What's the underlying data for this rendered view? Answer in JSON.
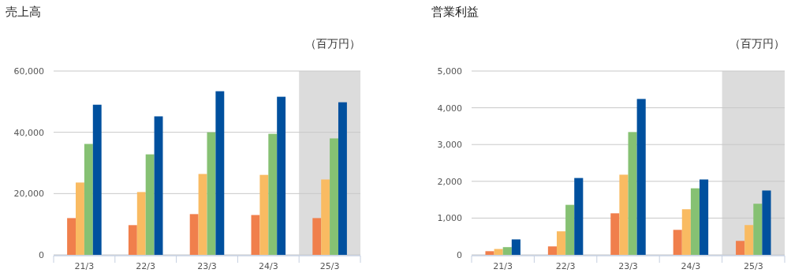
{
  "chart_data": [
    {
      "type": "bar",
      "title": "売上高",
      "annotations": [
        "（百万円）"
      ],
      "categories": [
        "21/3",
        "22/3",
        "23/3",
        "24/3",
        "25/3"
      ],
      "series": [
        {
          "color": "#f07f4c",
          "values": [
            12000,
            9700,
            13300,
            13000,
            12000
          ]
        },
        {
          "color": "#f9bb62",
          "values": [
            23600,
            20500,
            26400,
            26100,
            24600
          ]
        },
        {
          "color": "#86c173",
          "values": [
            36200,
            32800,
            40000,
            39500,
            38000
          ]
        },
        {
          "color": "#00509e",
          "values": [
            49000,
            45200,
            53400,
            51600,
            49800
          ]
        }
      ],
      "ylim": [
        0,
        60000
      ],
      "yticks": [
        {
          "value": 0,
          "label": "0"
        },
        {
          "value": 20000,
          "label": "20,000"
        },
        {
          "value": 40000,
          "label": "40,000"
        },
        {
          "value": 60000,
          "label": "60,000"
        }
      ],
      "grid": "y",
      "bands": [
        {
          "axis": "x",
          "from": "25/3",
          "to": "25/3",
          "color": "#dcdcdc"
        }
      ]
    },
    {
      "type": "bar",
      "title": "営業利益",
      "annotations": [
        "（百万円）"
      ],
      "categories": [
        "21/3",
        "22/3",
        "23/3",
        "24/3",
        "25/3"
      ],
      "series": [
        {
          "color": "#f07f4c",
          "values": [
            100,
            230,
            1130,
            680,
            380
          ]
        },
        {
          "color": "#f9bb62",
          "values": [
            160,
            640,
            2180,
            1240,
            810
          ]
        },
        {
          "color": "#86c173",
          "values": [
            210,
            1360,
            3340,
            1810,
            1390
          ]
        },
        {
          "color": "#00509e",
          "values": [
            420,
            2090,
            4240,
            2050,
            1750
          ]
        }
      ],
      "ylim": [
        0,
        5000
      ],
      "yticks": [
        {
          "value": 0,
          "label": "0"
        },
        {
          "value": 1000,
          "label": "1,000"
        },
        {
          "value": 2000,
          "label": "2,000"
        },
        {
          "value": 3000,
          "label": "3,000"
        },
        {
          "value": 4000,
          "label": "4,000"
        },
        {
          "value": 5000,
          "label": "5,000"
        }
      ],
      "grid": "y",
      "bands": [
        {
          "axis": "x",
          "from": "25/3",
          "to": "25/3",
          "color": "#dcdcdc"
        }
      ]
    }
  ]
}
